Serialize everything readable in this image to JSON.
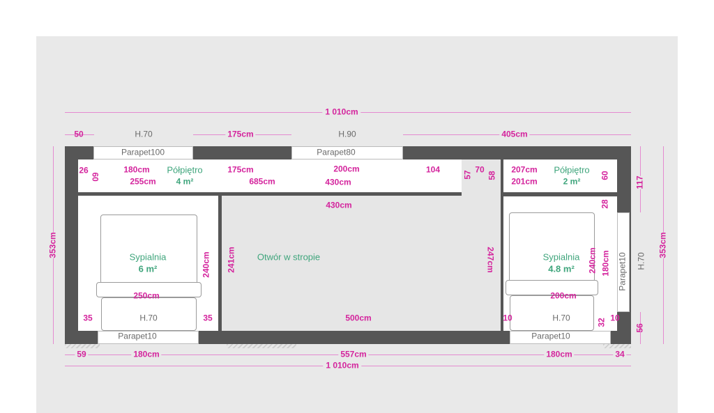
{
  "colors": {
    "wall": "#565656",
    "dimension": "#d4249d",
    "room_label": "#3fa57c",
    "annotation": "#6a6a6a",
    "background": "#e9e9e9"
  },
  "top_dims": {
    "total": "1 010cm",
    "left_offset": "50",
    "window1_height": "H.70",
    "gap": "175cm",
    "window2_height": "H.90",
    "right_segment": "405cm"
  },
  "windows": {
    "top_left": "Parapet100",
    "top_middle": "Parapet80",
    "bottom_left": "Parapet10",
    "bottom_right": "Parapet10",
    "right_side": "Parapet10"
  },
  "mezzanine_left": {
    "name": "Półpiętro",
    "area": "4 m²",
    "dims": {
      "d26": "26",
      "d60": "60",
      "d180": "180cm",
      "d255": "255cm",
      "d175": "175cm",
      "d685": "685cm",
      "d200": "200cm",
      "d430": "430cm",
      "d104": "104"
    }
  },
  "mezzanine_right": {
    "name": "Półpiętro",
    "area": "2 m²",
    "dims": {
      "d57": "57",
      "d70": "70",
      "d58": "58",
      "d207": "207cm",
      "d201": "201cm",
      "d60": "60",
      "d117": "117"
    }
  },
  "bedroom_left": {
    "name": "Sypialnia",
    "area": "6 m²",
    "dims": {
      "height": "353cm",
      "d240": "240cm",
      "d250": "250cm",
      "d35a": "35",
      "d35b": "35",
      "window_height": "H.70"
    }
  },
  "opening": {
    "name": "Otwór w stropie",
    "dims": {
      "d430": "430cm",
      "d241": "241cm",
      "d247": "247cm",
      "d500": "500cm"
    }
  },
  "bedroom_right": {
    "name": "Sypialnia",
    "area": "4.8 m²",
    "dims": {
      "d28": "28",
      "d240": "240cm",
      "d180": "180cm",
      "d200": "200cm",
      "d10a": "10",
      "d32": "32",
      "d10b": "10",
      "window_height": "H.70",
      "side_window_height": "H.70",
      "height": "353cm",
      "d56": "56"
    }
  },
  "bottom_dims": {
    "d59": "59",
    "d180a": "180cm",
    "d557": "557cm",
    "d180b": "180cm",
    "d34": "34",
    "total": "1 010cm"
  }
}
